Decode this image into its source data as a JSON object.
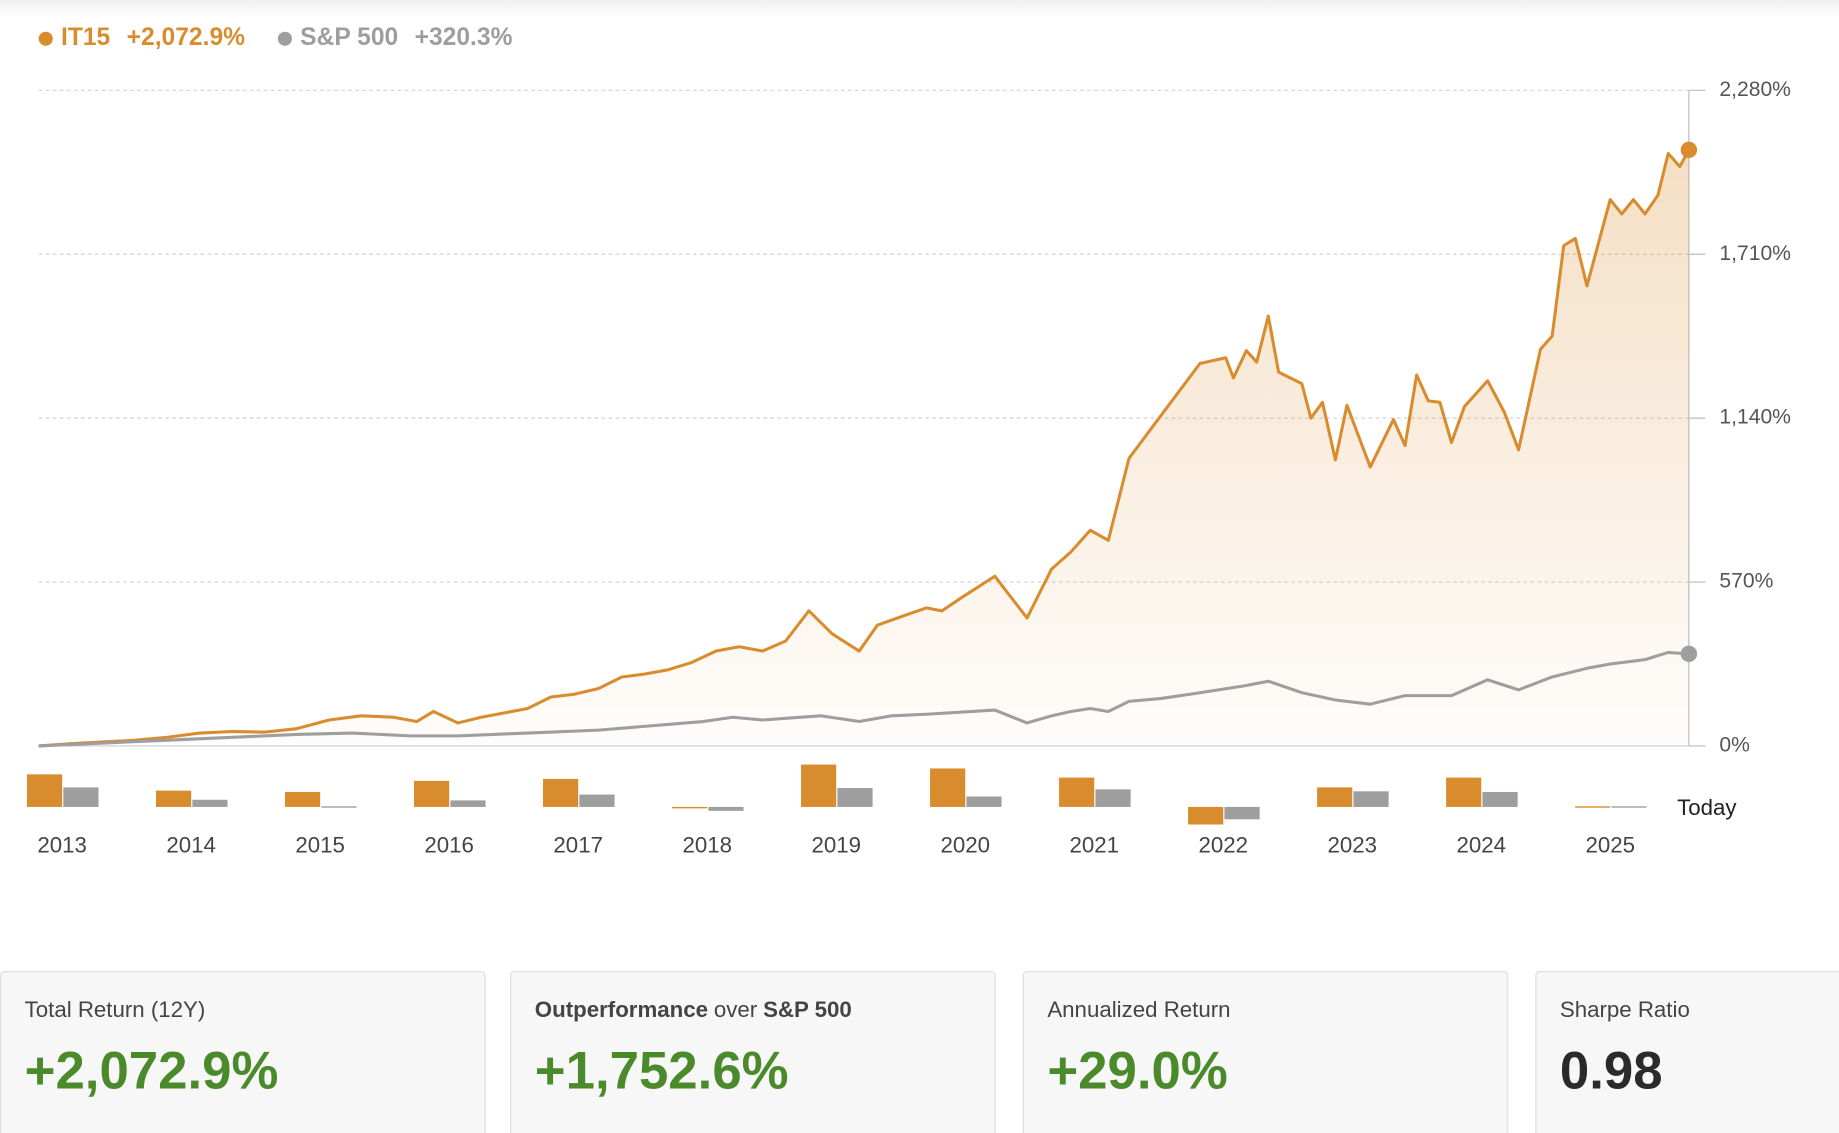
{
  "chart_data": [
    {
      "type": "line",
      "xlim": [
        2013,
        2025.79
      ],
      "ylim": [
        0,
        2280
      ],
      "yticks": [
        {
          "value": 0,
          "label": "0%"
        },
        {
          "value": 570,
          "label": "570%"
        },
        {
          "value": 1140,
          "label": "1,140%"
        },
        {
          "value": 1710,
          "label": "1,710%"
        },
        {
          "value": 2280,
          "label": "2,280%"
        }
      ],
      "grid": true,
      "series": [
        {
          "name": "IT15",
          "total": "+2,072.9%",
          "color": "#d98c2e",
          "area": true,
          "x": [
            2013.0,
            2013.25,
            2013.5,
            2013.75,
            2014.0,
            2014.25,
            2014.5,
            2014.75,
            2015.0,
            2015.25,
            2015.5,
            2015.75,
            2015.93,
            2016.06,
            2016.25,
            2016.43,
            2016.61,
            2016.79,
            2016.97,
            2017.15,
            2017.34,
            2017.52,
            2017.7,
            2017.88,
            2018.06,
            2018.25,
            2018.43,
            2018.61,
            2018.79,
            2018.97,
            2019.15,
            2019.36,
            2019.5,
            2019.75,
            2019.88,
            2020.0,
            2020.15,
            2020.41,
            2020.66,
            2020.85,
            2021.0,
            2021.15,
            2021.29,
            2021.45,
            2021.7,
            2022.0,
            2022.2,
            2022.26,
            2022.36,
            2022.44,
            2022.53,
            2022.61,
            2022.79,
            2022.86,
            2022.95,
            2023.05,
            2023.14,
            2023.32,
            2023.5,
            2023.59,
            2023.68,
            2023.77,
            2023.86,
            2023.95,
            2024.05,
            2024.23,
            2024.36,
            2024.47,
            2024.64,
            2024.73,
            2024.82,
            2024.91,
            2025.0,
            2025.18,
            2025.27,
            2025.36,
            2025.45,
            2025.55,
            2025.63,
            2025.72,
            2025.79
          ],
          "values": [
            0,
            8,
            14,
            20,
            30,
            45,
            50,
            48,
            60,
            90,
            105,
            100,
            85,
            120,
            80,
            100,
            115,
            130,
            170,
            180,
            200,
            240,
            250,
            265,
            290,
            330,
            345,
            330,
            365,
            470,
            390,
            330,
            420,
            460,
            480,
            470,
            515,
            590,
            445,
            615,
            675,
            750,
            715,
            1000,
            1150,
            1330,
            1350,
            1280,
            1375,
            1335,
            1495,
            1300,
            1260,
            1140,
            1195,
            995,
            1185,
            970,
            1135,
            1045,
            1290,
            1200,
            1195,
            1055,
            1180,
            1270,
            1160,
            1030,
            1380,
            1425,
            1740,
            1765,
            1600,
            1900,
            1850,
            1900,
            1850,
            1915,
            2060,
            2015,
            2072.9
          ]
        },
        {
          "name": "S&P 500",
          "total": "+320.3%",
          "color": "#9e9e9e",
          "area": false,
          "x": [
            2013.0,
            2014.0,
            2015.0,
            2015.43,
            2015.88,
            2016.25,
            2016.79,
            2017.34,
            2018.15,
            2018.38,
            2018.61,
            2019.06,
            2019.36,
            2019.61,
            2019.88,
            2020.41,
            2020.66,
            2020.85,
            2021.0,
            2021.15,
            2021.29,
            2021.45,
            2021.7,
            2022.0,
            2022.36,
            2022.53,
            2022.79,
            2023.05,
            2023.32,
            2023.59,
            2023.95,
            2024.23,
            2024.47,
            2024.73,
            2025.0,
            2025.18,
            2025.45,
            2025.63,
            2025.79
          ],
          "values": [
            0,
            20,
            40,
            45,
            35,
            35,
            45,
            55,
            85,
            100,
            90,
            105,
            85,
            105,
            110,
            125,
            80,
            105,
            120,
            130,
            120,
            155,
            165,
            185,
            210,
            225,
            185,
            160,
            145,
            175,
            175,
            230,
            195,
            240,
            270,
            285,
            300,
            325,
            320.3
          ]
        }
      ]
    },
    {
      "type": "bar",
      "ylim": [
        -30,
        70
      ],
      "annotation": "Today",
      "categories": [
        "2013",
        "2014",
        "2015",
        "2016",
        "2017",
        "2018",
        "2019",
        "2020",
        "2021",
        "2022",
        "2023",
        "2024",
        "2025"
      ],
      "series": [
        {
          "name": "IT15",
          "color": "#d98c2e",
          "values": [
            50,
            25,
            23,
            40,
            43,
            -2,
            65,
            59,
            45,
            -27,
            30,
            45,
            1
          ]
        },
        {
          "name": "S&P 500",
          "color": "#9e9e9e",
          "values": [
            30,
            11,
            1,
            10,
            19,
            -6,
            29,
            16,
            27,
            -19,
            24,
            23,
            1
          ]
        }
      ]
    }
  ],
  "cards": [
    {
      "label": [
        "Total Return (12Y)"
      ],
      "value": "+2,072.9%",
      "color": "#4a8a2a"
    },
    {
      "label": [
        "Outperformance",
        "over",
        "S&P 500"
      ],
      "value": "+1,752.6%",
      "color": "#4a8a2a"
    },
    {
      "label": [
        "Annualized Return"
      ],
      "value": "+29.0%",
      "color": "#4a8a2a"
    },
    {
      "label": [
        "Sharpe Ratio"
      ],
      "value": "0.98",
      "color": "#2a2a2a"
    }
  ]
}
